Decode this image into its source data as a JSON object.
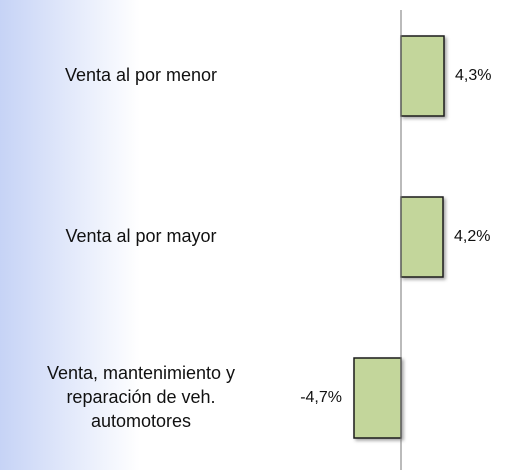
{
  "chart_data": {
    "type": "barh",
    "categories": [
      "Venta al por menor",
      "Venta al por mayor",
      [
        "Venta, mantenimiento y",
        "reparación de veh.",
        "automotores"
      ]
    ],
    "values": [
      4.3,
      4.2,
      -4.7
    ],
    "value_labels": [
      "4,3%",
      "4,2%",
      "-4,7%"
    ],
    "color": "#c3d69b",
    "xlim": [
      -5,
      5
    ]
  }
}
